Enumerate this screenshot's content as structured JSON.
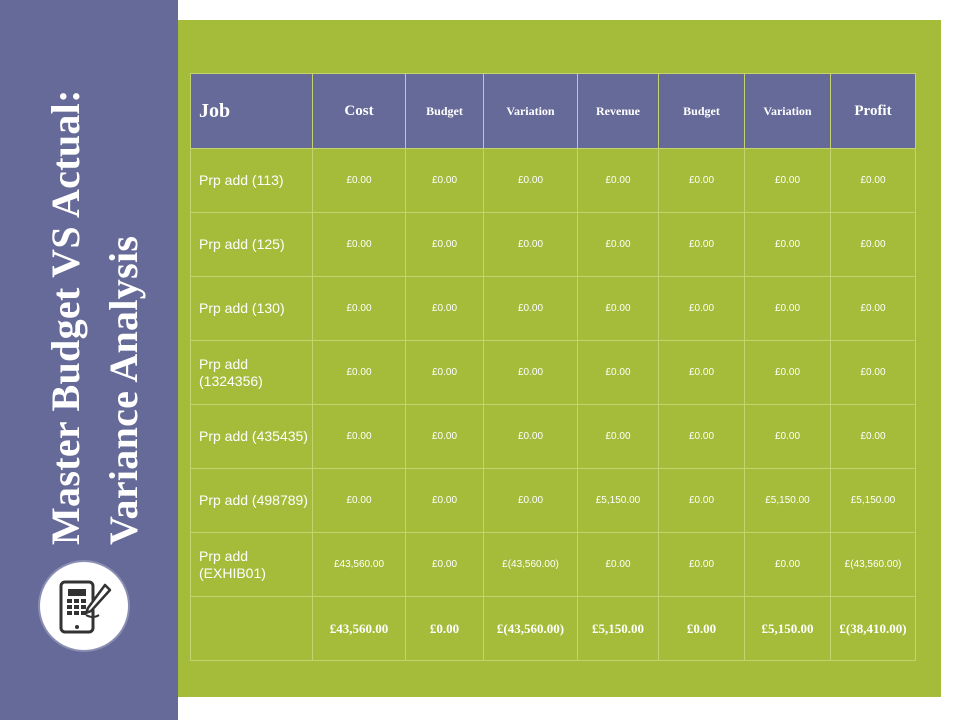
{
  "slide": {
    "title": "Master Budget VS Actual: Variance Analysis",
    "icon": "tablet-calculator-pen-icon",
    "colors": {
      "sidebar": "#666a98",
      "panel": "#a4bc3a",
      "header": "#666a98",
      "text": "#ffffff"
    }
  },
  "table": {
    "headers": [
      "Job",
      "Cost",
      "Budget",
      "Variation",
      "Revenue",
      "Budget",
      "Variation",
      "Profit"
    ],
    "rows": [
      [
        "Prp add (113)",
        "£0.00",
        "£0.00",
        "£0.00",
        "£0.00",
        "£0.00",
        "£0.00",
        "£0.00"
      ],
      [
        "Prp add (125)",
        "£0.00",
        "£0.00",
        "£0.00",
        "£0.00",
        "£0.00",
        "£0.00",
        "£0.00"
      ],
      [
        "Prp add (130)",
        "£0.00",
        "£0.00",
        "£0.00",
        "£0.00",
        "£0.00",
        "£0.00",
        "£0.00"
      ],
      [
        "Prp add (1324356)",
        "£0.00",
        "£0.00",
        "£0.00",
        "£0.00",
        "£0.00",
        "£0.00",
        "£0.00"
      ],
      [
        "Prp add (435435)",
        "£0.00",
        "£0.00",
        "£0.00",
        "£0.00",
        "£0.00",
        "£0.00",
        "£0.00"
      ],
      [
        "Prp add (498789)",
        "£0.00",
        "£0.00",
        "£0.00",
        "£5,150.00",
        "£0.00",
        "£5,150.00",
        "£5,150.00"
      ],
      [
        "Prp add (EXHIB01)",
        "£43,560.00",
        "£0.00",
        "£(43,560.00)",
        "£0.00",
        "£0.00",
        "£0.00",
        "£(43,560.00)"
      ]
    ],
    "totals": [
      "",
      "£43,560.00",
      "£0.00",
      "£(43,560.00)",
      "£5,150.00",
      "£0.00",
      "£5,150.00",
      "£(38,410.00)"
    ]
  }
}
